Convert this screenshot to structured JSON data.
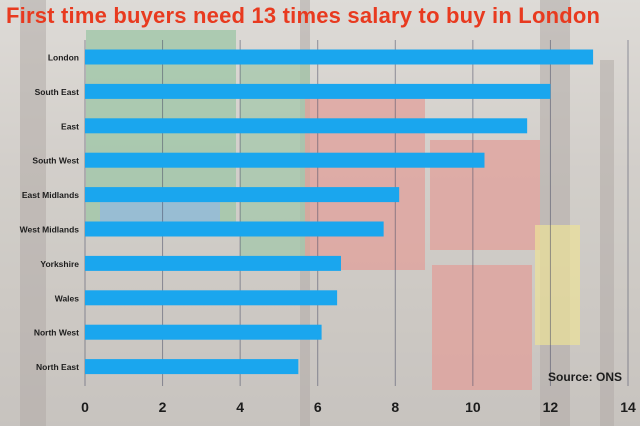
{
  "title": "First time buyers need 13 times salary to buy in London",
  "source": "Source: ONS",
  "bar_color": "#1aa6ee",
  "title_color": "#e83a1f",
  "chart_data": {
    "type": "bar",
    "orientation": "horizontal",
    "title": "First time buyers need 13 times salary to buy in London",
    "categories": [
      "London",
      "South East",
      "East",
      "South West",
      "East Midlands",
      "West Midlands",
      "Yorkshire",
      "Wales",
      "North West",
      "North East"
    ],
    "values": [
      13.1,
      12.0,
      11.4,
      10.3,
      8.1,
      7.7,
      6.6,
      6.5,
      6.1,
      5.5
    ],
    "xlim": [
      0,
      14
    ],
    "xticks": [
      0,
      2,
      4,
      6,
      8,
      10,
      12,
      14
    ],
    "grid": true,
    "xlabel": "",
    "ylabel": ""
  }
}
